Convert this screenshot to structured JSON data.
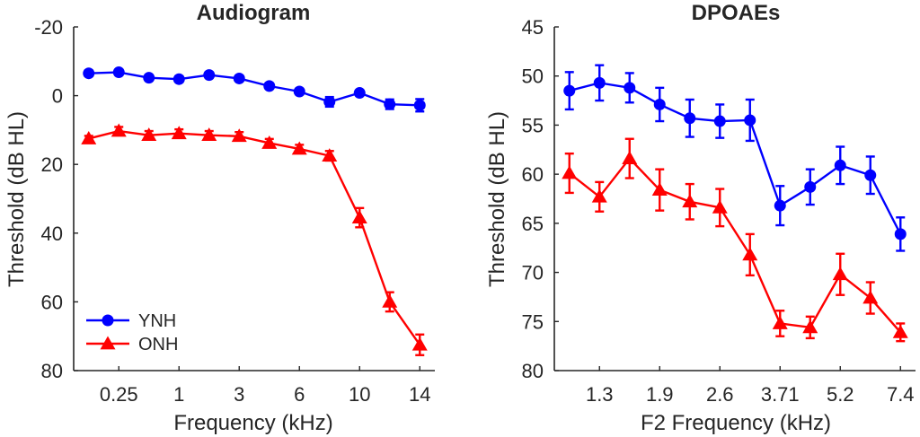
{
  "chart_data": [
    {
      "type": "line",
      "title": "Audiogram",
      "xlabel": "Frequency (kHz)",
      "ylabel": "Threshold (dB HL)",
      "ylim": [
        -20,
        80
      ],
      "y_reversed": true,
      "x_tick_labels": [
        "0.25",
        "1",
        "3",
        "6",
        "10",
        "14"
      ],
      "x_tick_positions": [
        2,
        4,
        6,
        8,
        10,
        12
      ],
      "y_ticks": [
        -20,
        0,
        20,
        40,
        60,
        80
      ],
      "xlim": [
        0.5,
        12.5
      ],
      "x": [
        1,
        2,
        3,
        4,
        5,
        6,
        7,
        8,
        9,
        10,
        11,
        12
      ],
      "legend": {
        "placement": "bottom-left"
      },
      "series": [
        {
          "name": "YNH",
          "color": "#0000ff",
          "marker": "circle",
          "values": [
            -6.5,
            -6.8,
            -5.2,
            -4.8,
            -6.0,
            -5.0,
            -2.8,
            -1.2,
            1.8,
            -0.8,
            2.5,
            2.8
          ],
          "errors": [
            0.8,
            0.8,
            0.8,
            0.8,
            0.8,
            0.8,
            0.8,
            0.8,
            1.4,
            0.8,
            1.4,
            1.8
          ]
        },
        {
          "name": "ONH",
          "color": "#ff0000",
          "marker": "triangle",
          "values": [
            12.5,
            10.3,
            11.5,
            11.0,
            11.5,
            11.8,
            13.8,
            15.5,
            17.5,
            35.5,
            60.0,
            72.5
          ],
          "errors": [
            0.8,
            1.2,
            1.2,
            1.2,
            1.2,
            1.2,
            1.2,
            1.2,
            1.4,
            2.8,
            2.8,
            3.0
          ]
        }
      ]
    },
    {
      "type": "line",
      "title": "DPOAEs",
      "xlabel": "F2 Frequency (kHz)",
      "ylabel": "Threshold (dB HL)",
      "ylim": [
        45,
        80
      ],
      "y_reversed": true,
      "x_tick_labels": [
        "1.3",
        "1.9",
        "2.6",
        "3.71",
        "5.2",
        "7.4"
      ],
      "x_tick_positions": [
        2,
        4,
        6,
        8,
        10,
        12
      ],
      "y_ticks": [
        45,
        50,
        55,
        60,
        65,
        70,
        75,
        80
      ],
      "xlim": [
        0.5,
        12.5
      ],
      "x": [
        1,
        2,
        3,
        4,
        5,
        6,
        7,
        8,
        9,
        10,
        11,
        12
      ],
      "series": [
        {
          "name": "YNH",
          "color": "#0000ff",
          "marker": "circle",
          "values": [
            51.5,
            50.7,
            51.2,
            52.9,
            54.3,
            54.6,
            54.5,
            63.2,
            61.3,
            59.1,
            60.1,
            66.1
          ],
          "errors": [
            1.9,
            1.8,
            1.5,
            1.7,
            1.9,
            1.7,
            2.1,
            2.0,
            1.8,
            1.9,
            1.9,
            1.7
          ]
        },
        {
          "name": "ONH",
          "color": "#ff0000",
          "marker": "triangle",
          "values": [
            59.9,
            62.3,
            58.4,
            61.6,
            62.8,
            63.4,
            68.2,
            75.2,
            75.6,
            70.2,
            72.6,
            76.1
          ],
          "errors": [
            2.0,
            1.5,
            2.0,
            2.1,
            1.8,
            1.9,
            2.1,
            1.3,
            1.1,
            2.1,
            1.6,
            0.9
          ]
        }
      ]
    }
  ]
}
